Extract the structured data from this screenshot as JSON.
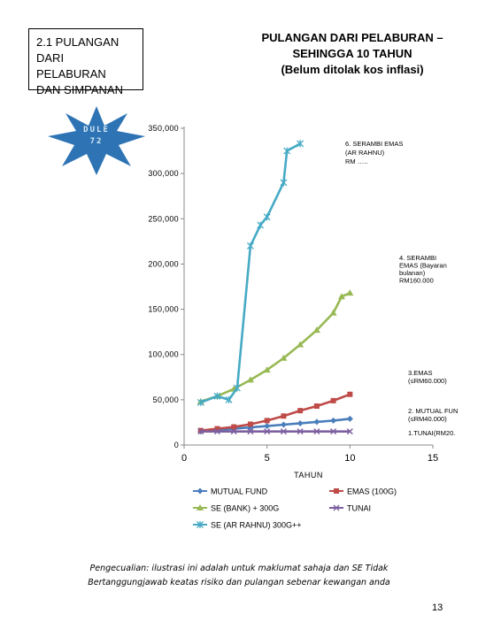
{
  "slide": {
    "section_title_lines": [
      "2.1 PULANGAN",
      "DARI PELABURAN",
      "DAN  SIMPANAN"
    ],
    "heading_lines": [
      "PULANGAN DARI PELABURAN –",
      "SEHINGGA 10 TAHUN",
      "(Belum ditolak kos inflasi)"
    ],
    "badge_lines": [
      "DULE",
      "72"
    ],
    "disclaimer_lines": [
      "Pengecualian: ilustrasi ini adalah untuk maklumat sahaja dan SE Tidak",
      "Bertanggungjawab keatas risiko dan pulangan sebenar kewangan anda"
    ],
    "page_number": "13",
    "colors": {
      "badge": "#2e74b5",
      "text": "#000000"
    }
  },
  "chart_data": {
    "type": "line",
    "xlabel": "TAHUN",
    "ylabel": "",
    "xlim": [
      0,
      15
    ],
    "ylim": [
      0,
      350000
    ],
    "x_ticks": [
      "0",
      "5",
      "10",
      "15"
    ],
    "y_ticks": [
      "0",
      "50,000",
      "100,000",
      "150,000",
      "200,000",
      "250,000",
      "300,000",
      "350,000"
    ],
    "grid": false,
    "legend_position": "bottom",
    "series": [
      {
        "name": "MUTUAL FUND",
        "color": "#4a7ebb",
        "marker": "diamond",
        "x": [
          1,
          2,
          3,
          4,
          5,
          6,
          7,
          8,
          9,
          10
        ],
        "y": [
          15000,
          16500,
          18000,
          19500,
          21000,
          22500,
          24000,
          25500,
          27000,
          29000
        ]
      },
      {
        "name": "EMAS (100G)",
        "color": "#be4b48",
        "marker": "square",
        "x": [
          1,
          2,
          3,
          4,
          5,
          6,
          7,
          8,
          9,
          10
        ],
        "y": [
          16000,
          18000,
          20000,
          23000,
          27000,
          32000,
          38000,
          43000,
          49000,
          56000
        ]
      },
      {
        "name": "SE (BANK) + 300G",
        "color": "#98b954",
        "marker": "triangle",
        "x": [
          1,
          2,
          3,
          4,
          5,
          6,
          7,
          8,
          9,
          9.5,
          10
        ],
        "y": [
          48000,
          54000,
          62000,
          72000,
          83000,
          96000,
          111000,
          127000,
          146000,
          164000,
          168000
        ]
      },
      {
        "name": "TUNAI",
        "color": "#7d60a0",
        "marker": "x",
        "x": [
          1,
          2,
          3,
          4,
          5,
          6,
          7,
          8,
          9,
          10
        ],
        "y": [
          15000,
          15000,
          15000,
          15000,
          15000,
          15000,
          15000,
          15000,
          15000,
          15000
        ]
      },
      {
        "name": "SE (AR RAHNU) 300G++",
        "color": "#46aac5",
        "marker": "star",
        "x": [
          1,
          2,
          2.7,
          3.2,
          4,
          4.6,
          5,
          6,
          6.2,
          7
        ],
        "y": [
          47000,
          54000,
          50000,
          63000,
          220000,
          243000,
          252000,
          290000,
          325000,
          333000
        ]
      }
    ],
    "annotations": [
      {
        "lines": [
          "6. SERAMBI EMAS",
          "(AR RAHNU)",
          "RM ….."
        ]
      },
      {
        "lines": [
          "4. SERAMBI",
          "EMAS (Bayaran",
          "bulanan)",
          "RM160.000"
        ]
      },
      {
        "lines": [
          "3.EMAS",
          "(≤RM60.000)"
        ]
      },
      {
        "lines": [
          "2. MUTUAL FUN",
          "(≤RM40.000)"
        ]
      },
      {
        "lines": [
          "1.TUNAI(RM20."
        ]
      }
    ]
  }
}
